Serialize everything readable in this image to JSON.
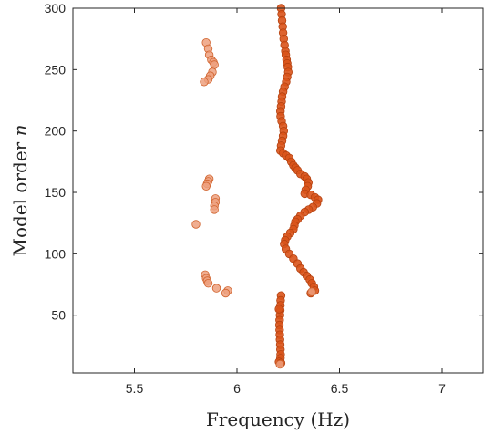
{
  "chart_data": {
    "type": "scatter",
    "title": "",
    "xlabel": "Frequency (Hz)",
    "ylabel_prefix": "Model order ",
    "ylabel_var": "n",
    "xlim": [
      5.2,
      7.2
    ],
    "ylim": [
      3,
      300
    ],
    "xticks": [
      5.5,
      6,
      6.5,
      7
    ],
    "yticks": [
      50,
      100,
      150,
      200,
      250,
      300
    ],
    "xtick_labels": [
      "5.5",
      "6",
      "6.5",
      "7"
    ],
    "ytick_labels": [
      "50",
      "100",
      "150",
      "200",
      "250",
      "300"
    ],
    "grid": false,
    "colors": {
      "dark_fill": "#d95319",
      "dark_edge": "#b5410f",
      "light_fill": "#eda07e",
      "light_edge": "#d0622c"
    },
    "series": [
      {
        "style": "dark",
        "points": [
          [
            6.215,
            300
          ],
          [
            6.218,
            295
          ],
          [
            6.22,
            290
          ],
          [
            6.223,
            285
          ],
          [
            6.225,
            280
          ],
          [
            6.228,
            275
          ],
          [
            6.232,
            270
          ],
          [
            6.236,
            265
          ],
          [
            6.238,
            262
          ],
          [
            6.242,
            258
          ],
          [
            6.245,
            255
          ],
          [
            6.248,
            252
          ],
          [
            6.25,
            248
          ],
          [
            6.245,
            244
          ],
          [
            6.24,
            240
          ],
          [
            6.232,
            236
          ],
          [
            6.225,
            232
          ],
          [
            6.22,
            228
          ],
          [
            6.218,
            224
          ],
          [
            6.215,
            220
          ],
          [
            6.212,
            216
          ],
          [
            6.213,
            212
          ],
          [
            6.218,
            208
          ],
          [
            6.225,
            204
          ],
          [
            6.228,
            200
          ],
          [
            6.225,
            196
          ],
          [
            6.22,
            192
          ],
          [
            6.215,
            188
          ],
          [
            6.212,
            184
          ],
          [
            6.225,
            182
          ],
          [
            6.24,
            180
          ],
          [
            6.255,
            178
          ],
          [
            6.265,
            175
          ],
          [
            6.275,
            172
          ],
          [
            6.285,
            170
          ],
          [
            6.295,
            168
          ],
          [
            6.31,
            165
          ],
          [
            6.33,
            163
          ],
          [
            6.34,
            161
          ],
          [
            6.348,
            158
          ],
          [
            6.345,
            155
          ],
          [
            6.335,
            152
          ],
          [
            6.33,
            149
          ],
          [
            6.36,
            148
          ],
          [
            6.38,
            146
          ],
          [
            6.395,
            144
          ],
          [
            6.39,
            141
          ],
          [
            6.37,
            138
          ],
          [
            6.35,
            136
          ],
          [
            6.33,
            134
          ],
          [
            6.31,
            131
          ],
          [
            6.295,
            128
          ],
          [
            6.285,
            126
          ],
          [
            6.28,
            123
          ],
          [
            6.275,
            120
          ],
          [
            6.26,
            117
          ],
          [
            6.245,
            114
          ],
          [
            6.235,
            111
          ],
          [
            6.23,
            108
          ],
          [
            6.238,
            104
          ],
          [
            6.255,
            100
          ],
          [
            6.275,
            96
          ],
          [
            6.295,
            92
          ],
          [
            6.31,
            88
          ],
          [
            6.325,
            85
          ],
          [
            6.34,
            82
          ],
          [
            6.355,
            79
          ],
          [
            6.365,
            76
          ],
          [
            6.375,
            73
          ],
          [
            6.38,
            70
          ],
          [
            6.36,
            68
          ],
          [
            6.215,
            66
          ],
          [
            6.213,
            62
          ],
          [
            6.212,
            58
          ],
          [
            6.211,
            54
          ],
          [
            6.21,
            50
          ],
          [
            6.208,
            46
          ],
          [
            6.207,
            42
          ],
          [
            6.208,
            38
          ],
          [
            6.209,
            34
          ],
          [
            6.21,
            30
          ],
          [
            6.211,
            26
          ],
          [
            6.212,
            22
          ],
          [
            6.213,
            18
          ],
          [
            6.212,
            15
          ],
          [
            6.205,
            12
          ],
          [
            6.215,
            11
          ],
          [
            6.205,
            55
          ]
        ]
      },
      {
        "style": "light",
        "points": [
          [
            5.85,
            272
          ],
          [
            5.86,
            267
          ],
          [
            5.865,
            262
          ],
          [
            5.875,
            258
          ],
          [
            5.885,
            256
          ],
          [
            5.89,
            254
          ],
          [
            5.88,
            248
          ],
          [
            5.87,
            245
          ],
          [
            5.86,
            242
          ],
          [
            5.84,
            240
          ],
          [
            5.865,
            161
          ],
          [
            5.86,
            159
          ],
          [
            5.855,
            157
          ],
          [
            5.85,
            155
          ],
          [
            5.895,
            145
          ],
          [
            5.895,
            142
          ],
          [
            5.89,
            139
          ],
          [
            5.89,
            136
          ],
          [
            5.8,
            124
          ],
          [
            5.845,
            83
          ],
          [
            5.85,
            80
          ],
          [
            5.855,
            78
          ],
          [
            5.86,
            76
          ],
          [
            5.9,
            72
          ],
          [
            5.955,
            70
          ],
          [
            5.945,
            68
          ],
          [
            6.365,
            69
          ],
          [
            6.21,
            10
          ]
        ]
      }
    ]
  }
}
